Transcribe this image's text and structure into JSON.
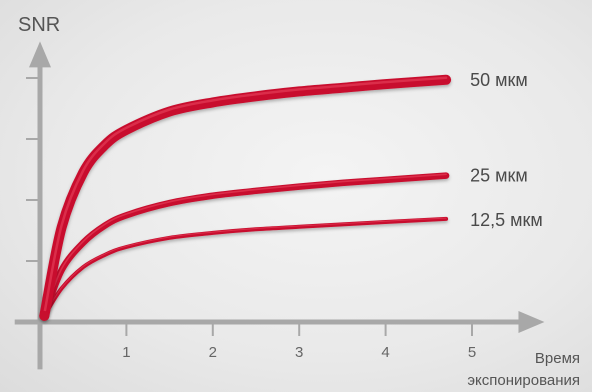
{
  "chart_data": {
    "type": "line",
    "title": "",
    "ylabel": "SNR",
    "xlabel_line1": "Время",
    "xlabel_line2": "экспонирования",
    "xlim": [
      -0.2,
      5.7
    ],
    "ylim": [
      -0.35,
      4.6
    ],
    "x_ticks": [
      1,
      2,
      3,
      4,
      5
    ],
    "x_tick_labels": [
      "1",
      "2",
      "3",
      "4",
      "5"
    ],
    "y_ticks": [
      1,
      2,
      3,
      4
    ],
    "grid": false,
    "series_color": "#c8102e",
    "series": [
      {
        "name": "50 мкм",
        "x": [
          0.05,
          0.25,
          0.5,
          0.75,
          1.0,
          1.5,
          2.0,
          2.5,
          3.0,
          3.5,
          4.0,
          4.7
        ],
        "y": [
          0.1,
          1.55,
          2.45,
          2.9,
          3.15,
          3.45,
          3.6,
          3.7,
          3.78,
          3.84,
          3.9,
          3.97
        ]
      },
      {
        "name": "25 мкм",
        "x": [
          0.05,
          0.25,
          0.5,
          0.75,
          1.0,
          1.5,
          2.0,
          2.5,
          3.0,
          3.5,
          4.0,
          4.7
        ],
        "y": [
          0.1,
          0.85,
          1.3,
          1.58,
          1.75,
          1.95,
          2.07,
          2.15,
          2.22,
          2.28,
          2.33,
          2.4
        ]
      },
      {
        "name": "12,5 мкм",
        "x": [
          0.05,
          0.25,
          0.5,
          0.75,
          1.0,
          1.5,
          2.0,
          2.5,
          3.0,
          3.5,
          4.0,
          4.7
        ],
        "y": [
          0.1,
          0.55,
          0.9,
          1.1,
          1.23,
          1.38,
          1.46,
          1.52,
          1.56,
          1.6,
          1.64,
          1.69
        ]
      }
    ]
  }
}
